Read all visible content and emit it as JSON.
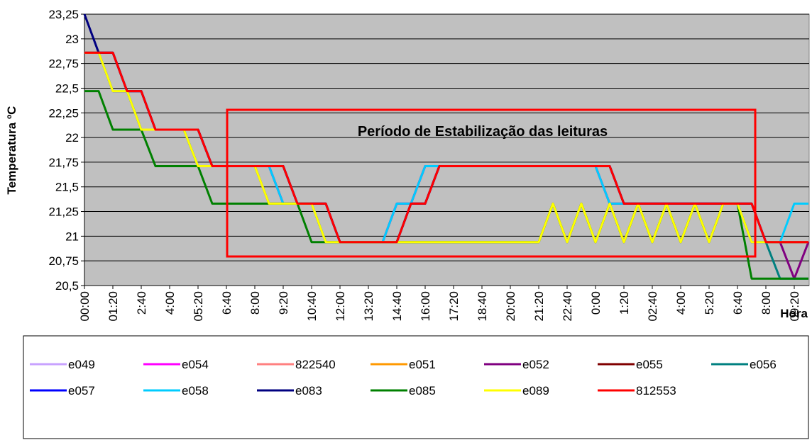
{
  "chart_data": {
    "type": "line",
    "y_label": "Temperatura ºC",
    "x_label": "Hora",
    "annotation": "Período de Estabilização das leituras",
    "background": "#c0c0c0",
    "grid": true,
    "legend": "bottom",
    "ylim": [
      20.5,
      23.25
    ],
    "yticks": [
      {
        "value": 20.5,
        "label": "20,5"
      },
      {
        "value": 20.75,
        "label": "20,75"
      },
      21,
      {
        "value": 21.25,
        "label": "21,25"
      },
      {
        "value": 21.5,
        "label": "21,5"
      },
      {
        "value": 21.75,
        "label": "21,75"
      },
      22,
      {
        "value": 22.25,
        "label": "22,25"
      },
      {
        "value": 22.5,
        "label": "22,5"
      },
      {
        "value": 22.75,
        "label": "22,75"
      },
      23,
      {
        "value": 23.25,
        "label": "23,25"
      }
    ],
    "categories": [
      "00:00",
      null,
      "01:20",
      null,
      "2:40",
      null,
      "4:00",
      null,
      "05:20",
      null,
      "6:40",
      null,
      "8:00",
      null,
      "9:20",
      null,
      "10:40",
      null,
      "12:00",
      null,
      "13:20",
      null,
      "14:40",
      null,
      "16:00",
      null,
      "17:20",
      null,
      "18:40",
      null,
      "20:00",
      null,
      "21:20",
      null,
      "22:40",
      null,
      "0:00",
      null,
      "1:20",
      null,
      "02:40",
      null,
      "4:00",
      null,
      "5:20",
      null,
      "6:40",
      null,
      "8:00",
      null,
      "09:20",
      null
    ],
    "series": [
      {
        "name": "e049",
        "color": "#c8a2ff",
        "values": [
          22.86,
          22.86,
          22.47,
          22.47,
          22.08,
          22.08,
          22.08,
          22.08,
          21.71,
          21.71,
          21.71,
          21.71,
          21.71,
          21.33,
          21.33,
          21.33,
          21.33,
          20.94,
          20.94,
          20.94,
          20.94,
          20.94,
          20.94,
          20.94,
          20.94,
          20.94,
          20.94,
          20.94,
          20.94,
          20.94,
          20.94,
          20.94,
          20.94,
          21.33,
          20.94,
          21.33,
          20.94,
          21.33,
          20.94,
          21.33,
          20.94,
          21.33,
          20.94,
          21.33,
          20.94,
          21.33,
          21.33,
          20.94,
          20.94,
          20.94,
          20.94,
          20.94
        ]
      },
      {
        "name": "e054",
        "color": "#ff00ff",
        "values": [
          22.86,
          22.86,
          22.47,
          22.47,
          22.08,
          22.08,
          22.08,
          22.08,
          21.71,
          21.71,
          21.71,
          21.71,
          21.71,
          21.71,
          21.33,
          21.33,
          21.33,
          20.94,
          20.94,
          20.94,
          20.94,
          20.94,
          21.33,
          21.33,
          21.71,
          21.71,
          21.71,
          21.71,
          21.71,
          21.71,
          21.71,
          21.71,
          21.71,
          21.71,
          21.71,
          21.71,
          21.71,
          21.33,
          21.33,
          21.33,
          21.33,
          21.33,
          21.33,
          21.33,
          21.33,
          21.33,
          21.33,
          20.94,
          20.94,
          20.94,
          20.94,
          20.94
        ]
      },
      {
        "name": "822540",
        "color": "#ff8080",
        "values": [
          22.86,
          22.86,
          22.47,
          22.47,
          22.08,
          22.08,
          22.08,
          22.08,
          21.71,
          21.71,
          21.71,
          21.71,
          21.71,
          21.33,
          21.33,
          21.33,
          21.33,
          20.94,
          20.94,
          20.94,
          20.94,
          20.94,
          20.94,
          20.94,
          20.94,
          20.94,
          20.94,
          20.94,
          20.94,
          20.94,
          20.94,
          20.94,
          20.94,
          21.33,
          20.94,
          21.33,
          20.94,
          21.33,
          20.94,
          21.33,
          20.94,
          21.33,
          20.94,
          21.33,
          20.94,
          21.33,
          21.33,
          20.94,
          20.94,
          20.94,
          20.94,
          20.94
        ]
      },
      {
        "name": "e051",
        "color": "#ff9900",
        "values": [
          22.86,
          22.86,
          22.47,
          22.47,
          22.08,
          22.08,
          22.08,
          22.08,
          21.71,
          21.71,
          21.71,
          21.71,
          21.71,
          21.33,
          21.33,
          21.33,
          21.33,
          20.94,
          20.94,
          20.94,
          20.94,
          20.94,
          20.94,
          20.94,
          20.94,
          20.94,
          20.94,
          20.94,
          20.94,
          20.94,
          20.94,
          20.94,
          20.94,
          21.33,
          20.94,
          21.33,
          20.94,
          21.33,
          20.94,
          21.33,
          20.94,
          21.33,
          20.94,
          21.33,
          20.94,
          21.33,
          21.33,
          20.94,
          20.94,
          20.94,
          20.94,
          20.94
        ]
      },
      {
        "name": "e052",
        "color": "#800080",
        "values": [
          22.86,
          22.86,
          22.47,
          22.47,
          22.08,
          22.08,
          22.08,
          22.08,
          21.71,
          21.71,
          21.71,
          21.71,
          21.71,
          21.71,
          21.33,
          21.33,
          21.33,
          20.94,
          20.94,
          20.94,
          20.94,
          20.94,
          21.33,
          21.33,
          21.71,
          21.71,
          21.71,
          21.71,
          21.71,
          21.71,
          21.71,
          21.71,
          21.71,
          21.71,
          21.71,
          21.71,
          21.71,
          21.33,
          21.33,
          21.33,
          21.33,
          21.33,
          21.33,
          21.33,
          21.33,
          21.33,
          21.33,
          20.94,
          20.94,
          20.94,
          20.57,
          20.94
        ]
      },
      {
        "name": "e055",
        "color": "#800000",
        "values": [
          22.86,
          22.86,
          22.86,
          22.47,
          22.47,
          22.08,
          22.08,
          22.08,
          22.08,
          21.71,
          21.71,
          21.71,
          21.71,
          21.71,
          21.71,
          21.33,
          21.33,
          21.33,
          20.94,
          20.94,
          20.94,
          20.94,
          20.94,
          21.33,
          21.33,
          21.71,
          21.71,
          21.71,
          21.71,
          21.71,
          21.71,
          21.71,
          21.71,
          21.71,
          21.71,
          21.71,
          21.71,
          21.71,
          21.33,
          21.33,
          21.33,
          21.33,
          21.33,
          21.33,
          21.33,
          21.33,
          21.33,
          21.33,
          20.94,
          20.94,
          20.94,
          20.94
        ]
      },
      {
        "name": "e056",
        "color": "#008080",
        "values": [
          22.86,
          22.86,
          22.47,
          22.47,
          22.08,
          22.08,
          22.08,
          22.08,
          21.71,
          21.71,
          21.71,
          21.71,
          21.71,
          21.33,
          21.33,
          21.33,
          21.33,
          20.94,
          20.94,
          20.94,
          20.94,
          20.94,
          20.94,
          20.94,
          20.94,
          20.94,
          20.94,
          20.94,
          20.94,
          20.94,
          20.94,
          20.94,
          20.94,
          21.33,
          20.94,
          21.33,
          20.94,
          21.33,
          20.94,
          21.33,
          20.94,
          21.33,
          20.94,
          21.33,
          20.94,
          21.33,
          21.33,
          20.94,
          20.94,
          20.57,
          20.57,
          20.57
        ]
      },
      {
        "name": "e057",
        "color": "#0000ff",
        "values": [
          22.86,
          22.86,
          22.86,
          22.47,
          22.47,
          22.08,
          22.08,
          22.08,
          22.08,
          21.71,
          21.71,
          21.71,
          21.71,
          21.71,
          21.71,
          21.33,
          21.33,
          21.33,
          20.94,
          20.94,
          20.94,
          20.94,
          20.94,
          21.33,
          21.33,
          21.71,
          21.71,
          21.71,
          21.71,
          21.71,
          21.71,
          21.71,
          21.71,
          21.71,
          21.71,
          21.71,
          21.71,
          21.71,
          21.33,
          21.33,
          21.33,
          21.33,
          21.33,
          21.33,
          21.33,
          21.33,
          21.33,
          21.33,
          20.94,
          20.94,
          20.94,
          20.94
        ]
      },
      {
        "name": "e058",
        "color": "#00ccff",
        "values": [
          22.86,
          22.86,
          22.47,
          22.47,
          22.08,
          22.08,
          22.08,
          22.08,
          21.71,
          21.71,
          21.71,
          21.71,
          21.71,
          21.71,
          21.33,
          21.33,
          21.33,
          20.94,
          20.94,
          20.94,
          20.94,
          20.94,
          21.33,
          21.33,
          21.71,
          21.71,
          21.71,
          21.71,
          21.71,
          21.71,
          21.71,
          21.71,
          21.71,
          21.71,
          21.71,
          21.71,
          21.71,
          21.33,
          21.33,
          21.33,
          21.33,
          21.33,
          21.33,
          21.33,
          21.33,
          21.33,
          21.33,
          20.94,
          20.94,
          20.94,
          21.33,
          21.33
        ]
      },
      {
        "name": "e083",
        "color": "#000080",
        "values": [
          23.25,
          22.86,
          22.86,
          22.47,
          22.47,
          22.08,
          22.08,
          22.08,
          22.08,
          21.71,
          21.71,
          21.71,
          21.71,
          21.71,
          21.71,
          21.33,
          21.33,
          21.33,
          20.94,
          20.94,
          20.94,
          20.94,
          20.94,
          21.33,
          21.33,
          21.71,
          21.71,
          21.71,
          21.71,
          21.71,
          21.71,
          21.71,
          21.71,
          21.71,
          21.71,
          21.71,
          21.71,
          21.71,
          21.33,
          21.33,
          21.33,
          21.33,
          21.33,
          21.33,
          21.33,
          21.33,
          21.33,
          21.33,
          20.94,
          20.94,
          20.94,
          20.94
        ]
      },
      {
        "name": "e085",
        "color": "#008000",
        "values": [
          22.47,
          22.47,
          22.08,
          22.08,
          22.08,
          21.71,
          21.71,
          21.71,
          21.71,
          21.33,
          21.33,
          21.33,
          21.33,
          21.33,
          21.33,
          21.33,
          20.94,
          20.94,
          20.94,
          20.94,
          20.94,
          20.94,
          20.94,
          20.94,
          20.94,
          20.94,
          20.94,
          20.94,
          20.94,
          20.94,
          20.94,
          20.94,
          20.94,
          21.33,
          20.94,
          21.33,
          20.94,
          21.33,
          20.94,
          21.33,
          20.94,
          21.33,
          20.94,
          21.33,
          20.94,
          21.33,
          21.33,
          20.57,
          20.57,
          20.57,
          20.57,
          20.57
        ]
      },
      {
        "name": "e089",
        "color": "#ffff00",
        "values": [
          22.86,
          22.86,
          22.47,
          22.47,
          22.08,
          22.08,
          22.08,
          22.08,
          21.71,
          21.71,
          21.71,
          21.71,
          21.71,
          21.33,
          21.33,
          21.33,
          21.33,
          20.94,
          20.94,
          20.94,
          20.94,
          20.94,
          20.94,
          20.94,
          20.94,
          20.94,
          20.94,
          20.94,
          20.94,
          20.94,
          20.94,
          20.94,
          20.94,
          21.33,
          20.94,
          21.33,
          20.94,
          21.33,
          20.94,
          21.33,
          20.94,
          21.33,
          20.94,
          21.33,
          20.94,
          21.33,
          21.33,
          20.94,
          20.94,
          20.94,
          20.94,
          20.94
        ]
      },
      {
        "name": "812553",
        "color": "#ff0000",
        "values": [
          22.86,
          22.86,
          22.86,
          22.47,
          22.47,
          22.08,
          22.08,
          22.08,
          22.08,
          21.71,
          21.71,
          21.71,
          21.71,
          21.71,
          21.71,
          21.33,
          21.33,
          21.33,
          20.94,
          20.94,
          20.94,
          20.94,
          20.94,
          21.33,
          21.33,
          21.71,
          21.71,
          21.71,
          21.71,
          21.71,
          21.71,
          21.71,
          21.71,
          21.71,
          21.71,
          21.71,
          21.71,
          21.71,
          21.33,
          21.33,
          21.33,
          21.33,
          21.33,
          21.33,
          21.33,
          21.33,
          21.33,
          21.33,
          20.94,
          20.94,
          20.94,
          20.94
        ]
      }
    ]
  }
}
